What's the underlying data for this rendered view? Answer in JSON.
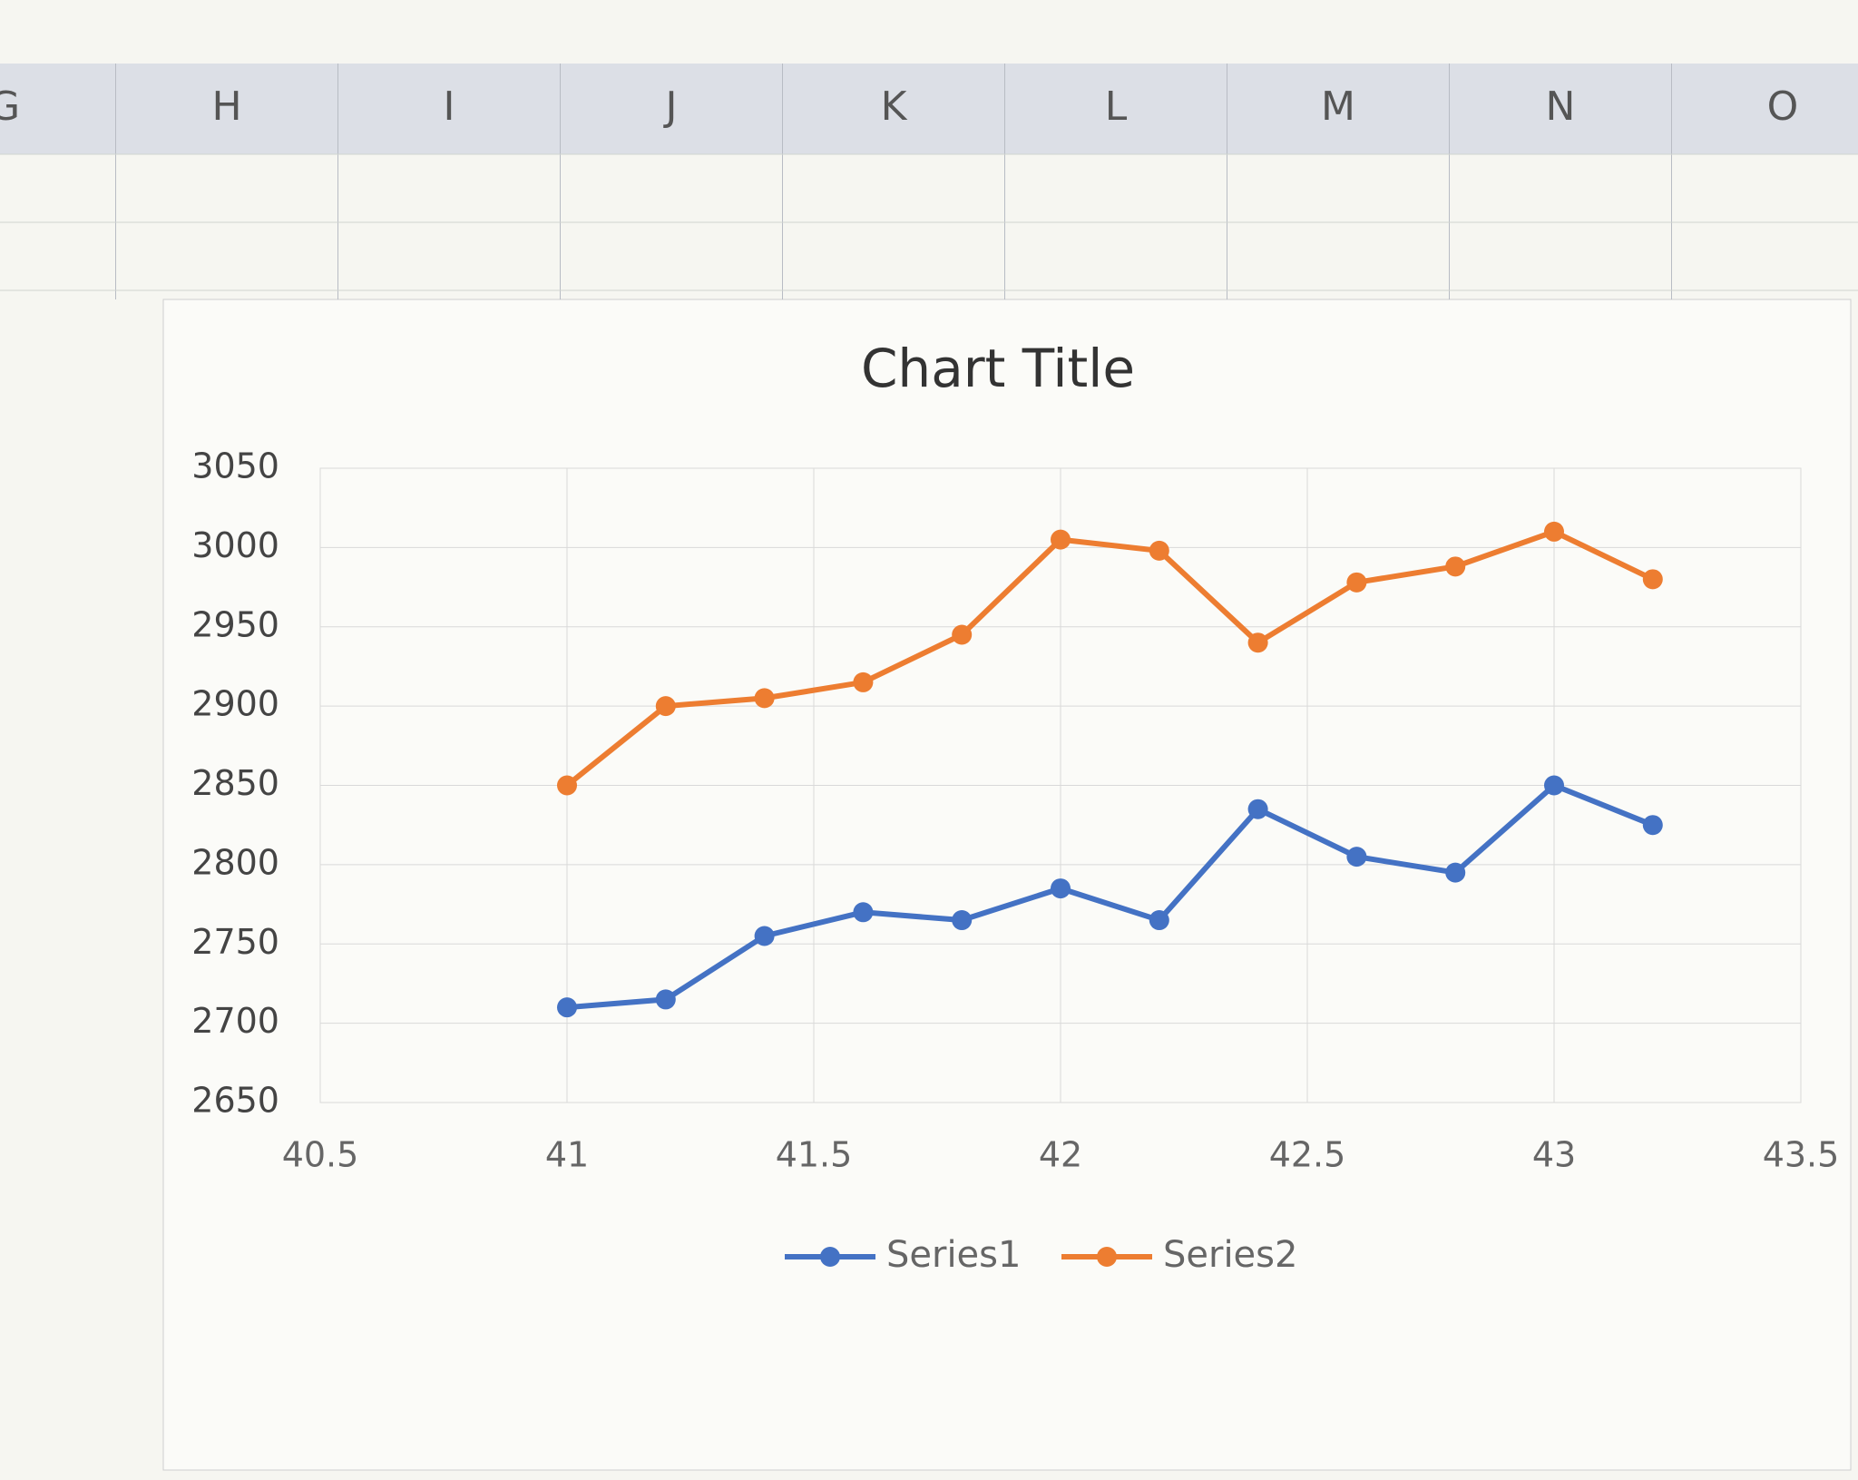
{
  "columns": [
    "G",
    "H",
    "I",
    "J",
    "K",
    "L",
    "M",
    "N",
    "O"
  ],
  "chart_data": {
    "type": "line",
    "title": "Chart Title",
    "x": [
      41,
      41.2,
      41.4,
      41.6,
      41.8,
      42,
      42.2,
      42.4,
      42.6,
      42.8,
      43,
      43.2
    ],
    "series": [
      {
        "name": "Series1",
        "color": "#4472c4",
        "values": [
          2710,
          2715,
          2755,
          2770,
          2765,
          2785,
          2765,
          2835,
          2805,
          2795,
          2850,
          2825
        ]
      },
      {
        "name": "Series2",
        "color": "#ed7d31",
        "values": [
          2850,
          2900,
          2905,
          2915,
          2945,
          3005,
          2998,
          2940,
          2978,
          2988,
          3010,
          2980
        ]
      }
    ],
    "xlim": [
      40.5,
      43.5
    ],
    "xticks": [
      40.5,
      41,
      41.5,
      42,
      42.5,
      43,
      43.5
    ],
    "ylim": [
      2650,
      3050
    ],
    "yticks": [
      2650,
      2700,
      2750,
      2800,
      2850,
      2900,
      2950,
      3000,
      3050
    ],
    "grid": true,
    "legend": "bottom"
  }
}
